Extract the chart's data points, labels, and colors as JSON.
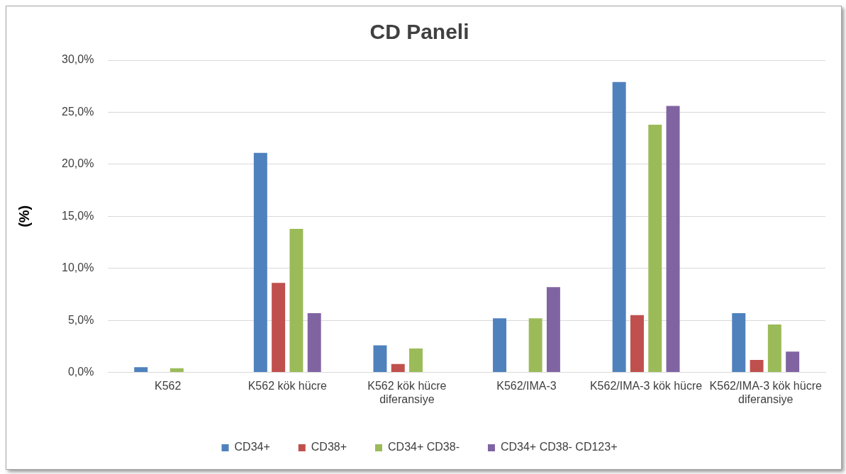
{
  "chart_data": {
    "type": "bar",
    "title": "CD Paneli",
    "ylabel": "(%)",
    "categories": [
      "K562",
      "K562 kök hücre",
      "K562 kök hücre diferansiye",
      "K562/IMA-3",
      "K562/IMA-3 kök hücre",
      "K562/IMA-3 kök hücre diferansiye"
    ],
    "series": [
      {
        "name": "CD34+",
        "color": "#4f81bd",
        "values": [
          0.5,
          21.1,
          2.6,
          5.2,
          27.9,
          5.7
        ]
      },
      {
        "name": "CD38+",
        "color": "#c0504d",
        "values": [
          0,
          8.6,
          0.8,
          0,
          5.5,
          1.2
        ]
      },
      {
        "name": "CD34+ CD38-",
        "color": "#9bbb59",
        "values": [
          0.4,
          13.8,
          2.3,
          5.2,
          23.8,
          4.6
        ]
      },
      {
        "name": "CD34+ CD38- CD123+",
        "color": "#8064a2",
        "values": [
          0,
          5.7,
          0,
          8.2,
          25.6,
          2.0
        ]
      }
    ],
    "ylim": [
      0,
      30
    ],
    "yticks": [
      {
        "value": 0,
        "label": "0,0%"
      },
      {
        "value": 5,
        "label": "5,0%"
      },
      {
        "value": 10,
        "label": "10,0%"
      },
      {
        "value": 15,
        "label": "15,0%"
      },
      {
        "value": 20,
        "label": "20,0%"
      },
      {
        "value": 25,
        "label": "25,0%"
      },
      {
        "value": 30,
        "label": "30,0%"
      }
    ],
    "grid": "y",
    "legend": "bottom"
  }
}
